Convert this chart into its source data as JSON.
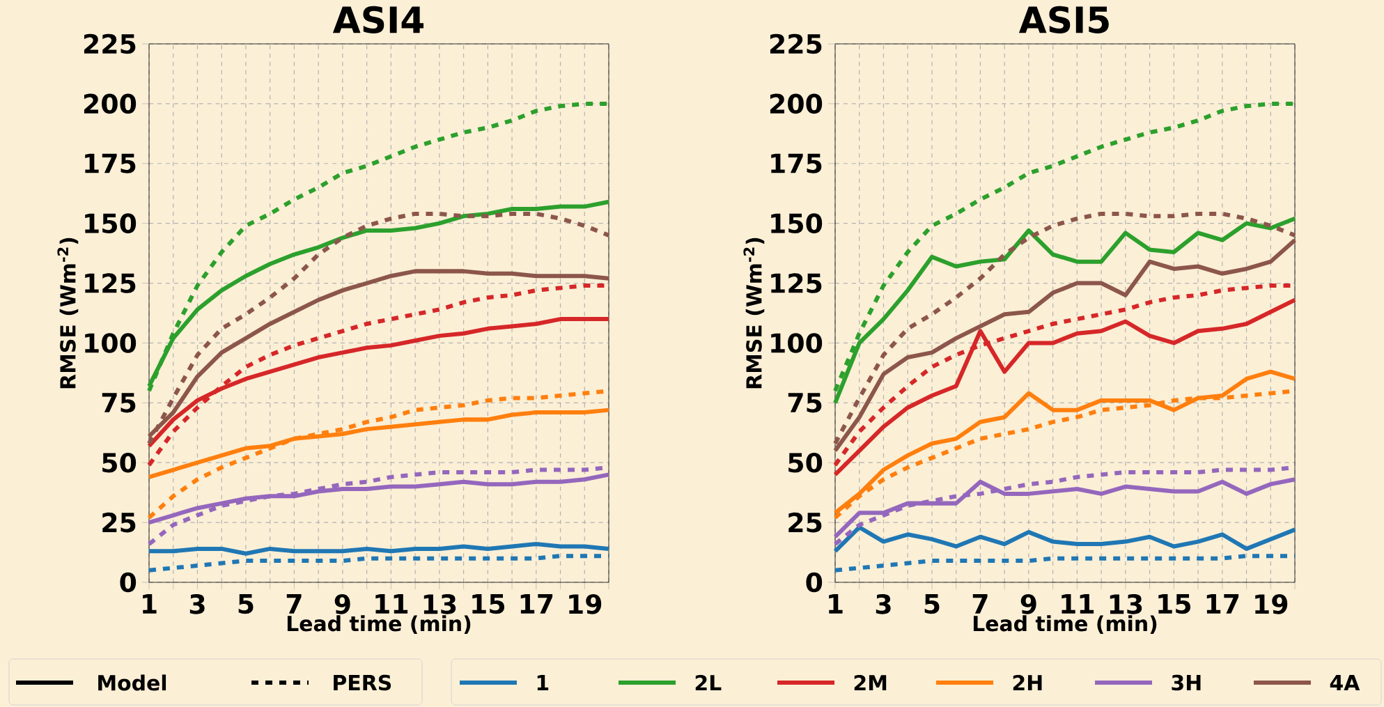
{
  "chart_data": [
    {
      "type": "line",
      "title": "ASI4",
      "xlabel": "Lead time (min)",
      "ylabel": "RMSE (Wm$^{-2}$)",
      "x": [
        1,
        2,
        3,
        4,
        5,
        6,
        7,
        8,
        9,
        10,
        11,
        12,
        13,
        14,
        15,
        16,
        17,
        18,
        19,
        20
      ],
      "xlim": [
        1,
        20
      ],
      "ylim": [
        0,
        225
      ],
      "xticks": [
        1,
        {
          "value": 2,
          "label": null
        },
        3,
        {
          "value": 4,
          "label": null
        },
        5,
        {
          "value": 6,
          "label": null
        },
        7,
        {
          "value": 8,
          "label": null
        },
        9,
        {
          "value": 10,
          "label": null
        },
        11,
        {
          "value": 12,
          "label": null
        },
        13,
        {
          "value": 14,
          "label": null
        },
        15,
        {
          "value": 16,
          "label": null
        },
        17,
        {
          "value": 18,
          "label": null
        },
        19,
        {
          "value": 20,
          "label": null
        }
      ],
      "yticks": [
        0,
        25,
        50,
        75,
        100,
        125,
        150,
        175,
        200,
        225
      ],
      "grid": true,
      "series": [
        {
          "color": "#1f77b4",
          "line_style": "solid",
          "values": [
            13,
            13,
            14,
            14,
            12,
            14,
            13,
            13,
            13,
            14,
            13,
            14,
            14,
            15,
            14,
            15,
            16,
            15,
            15,
            14
          ]
        },
        {
          "color": "#2ca02c",
          "line_style": "solid",
          "values": [
            82,
            102,
            114,
            122,
            128,
            133,
            137,
            140,
            144,
            147,
            147,
            148,
            150,
            153,
            154,
            156,
            156,
            157,
            157,
            159
          ]
        },
        {
          "color": "#d62728",
          "line_style": "solid",
          "values": [
            57,
            68,
            76,
            81,
            85,
            88,
            91,
            94,
            96,
            98,
            99,
            101,
            103,
            104,
            106,
            107,
            108,
            110,
            110,
            110
          ]
        },
        {
          "color": "#ff7f0e",
          "line_style": "solid",
          "values": [
            44,
            47,
            50,
            53,
            56,
            57,
            60,
            61,
            62,
            64,
            65,
            66,
            67,
            68,
            68,
            70,
            71,
            71,
            71,
            72
          ]
        },
        {
          "color": "#9467bd",
          "line_style": "solid",
          "values": [
            25,
            28,
            31,
            33,
            35,
            36,
            36,
            38,
            39,
            39,
            40,
            40,
            41,
            42,
            41,
            41,
            42,
            42,
            43,
            45
          ]
        },
        {
          "color": "#8c564b",
          "line_style": "solid",
          "values": [
            61,
            71,
            86,
            96,
            102,
            108,
            113,
            118,
            122,
            125,
            128,
            130,
            130,
            130,
            129,
            129,
            128,
            128,
            128,
            127
          ]
        },
        {
          "color": "#1f77b4",
          "line_style": "dotted",
          "values": [
            5,
            6,
            7,
            8,
            9,
            9,
            9,
            9,
            9,
            10,
            10,
            10,
            10,
            10,
            10,
            10,
            10,
            11,
            11,
            11
          ]
        },
        {
          "color": "#2ca02c",
          "line_style": "dotted",
          "values": [
            80,
            104,
            124,
            138,
            149,
            154,
            160,
            165,
            171,
            174,
            178,
            182,
            185,
            188,
            190,
            193,
            197,
            199,
            200,
            200
          ]
        },
        {
          "color": "#d62728",
          "line_style": "dotted",
          "values": [
            49,
            63,
            73,
            82,
            90,
            95,
            99,
            102,
            105,
            108,
            110,
            112,
            114,
            117,
            119,
            120,
            122,
            123,
            124,
            124
          ]
        },
        {
          "color": "#ff7f0e",
          "line_style": "dotted",
          "values": [
            27,
            36,
            43,
            48,
            52,
            56,
            60,
            62,
            64,
            67,
            69,
            72,
            73,
            74,
            76,
            77,
            77,
            78,
            79,
            80
          ]
        },
        {
          "color": "#9467bd",
          "line_style": "dotted",
          "values": [
            16,
            24,
            28,
            32,
            34,
            36,
            37,
            39,
            41,
            42,
            44,
            45,
            46,
            46,
            46,
            46,
            47,
            47,
            47,
            48
          ]
        },
        {
          "color": "#8c564b",
          "line_style": "dotted",
          "values": [
            58,
            77,
            95,
            106,
            112,
            119,
            127,
            137,
            144,
            149,
            152,
            154,
            154,
            153,
            153,
            154,
            154,
            152,
            149,
            145
          ]
        }
      ]
    },
    {
      "type": "line",
      "title": "ASI5",
      "xlabel": "Lead time (min)",
      "ylabel": "RMSE (Wm$^{-2}$)",
      "x": [
        1,
        2,
        3,
        4,
        5,
        6,
        7,
        8,
        9,
        10,
        11,
        12,
        13,
        14,
        15,
        16,
        17,
        18,
        19,
        20
      ],
      "xlim": [
        1,
        20
      ],
      "ylim": [
        0,
        225
      ],
      "xticks": [
        1,
        {
          "value": 2,
          "label": null
        },
        3,
        {
          "value": 4,
          "label": null
        },
        5,
        {
          "value": 6,
          "label": null
        },
        7,
        {
          "value": 8,
          "label": null
        },
        9,
        {
          "value": 10,
          "label": null
        },
        11,
        {
          "value": 12,
          "label": null
        },
        13,
        {
          "value": 14,
          "label": null
        },
        15,
        {
          "value": 16,
          "label": null
        },
        17,
        {
          "value": 18,
          "label": null
        },
        19,
        {
          "value": 20,
          "label": null
        }
      ],
      "yticks": [
        0,
        25,
        50,
        75,
        100,
        125,
        150,
        175,
        200,
        225
      ],
      "grid": true,
      "legend": "bottom",
      "series": [
        {
          "name": "1",
          "color": "#1f77b4",
          "line_style": "solid",
          "values": [
            13,
            23,
            17,
            20,
            18,
            15,
            19,
            16,
            21,
            17,
            16,
            16,
            17,
            19,
            15,
            17,
            20,
            14,
            18,
            22
          ]
        },
        {
          "name": "2L",
          "color": "#2ca02c",
          "line_style": "solid",
          "values": [
            75,
            100,
            110,
            122,
            136,
            132,
            134,
            135,
            147,
            137,
            134,
            134,
            146,
            139,
            138,
            146,
            143,
            150,
            148,
            152
          ]
        },
        {
          "name": "2M",
          "color": "#d62728",
          "line_style": "solid",
          "values": [
            45,
            55,
            65,
            73,
            78,
            82,
            105,
            88,
            100,
            100,
            104,
            105,
            109,
            103,
            100,
            105,
            106,
            108,
            113,
            118
          ]
        },
        {
          "name": "2H",
          "color": "#ff7f0e",
          "line_style": "solid",
          "values": [
            29,
            37,
            47,
            53,
            58,
            60,
            67,
            69,
            79,
            72,
            72,
            76,
            76,
            76,
            72,
            77,
            78,
            85,
            88,
            85
          ]
        },
        {
          "name": "3H",
          "color": "#9467bd",
          "line_style": "solid",
          "values": [
            19,
            29,
            29,
            33,
            33,
            33,
            42,
            37,
            37,
            38,
            39,
            37,
            40,
            39,
            38,
            38,
            42,
            37,
            41,
            43
          ]
        },
        {
          "name": "4A",
          "color": "#8c564b",
          "line_style": "solid",
          "values": [
            55,
            69,
            87,
            94,
            96,
            102,
            107,
            112,
            113,
            121,
            125,
            125,
            120,
            134,
            131,
            132,
            129,
            131,
            134,
            143
          ]
        },
        {
          "color": "#1f77b4",
          "line_style": "dotted",
          "values": [
            5,
            6,
            7,
            8,
            9,
            9,
            9,
            9,
            9,
            10,
            10,
            10,
            10,
            10,
            10,
            10,
            10,
            11,
            11,
            11
          ]
        },
        {
          "color": "#2ca02c",
          "line_style": "dotted",
          "values": [
            80,
            104,
            124,
            138,
            149,
            154,
            160,
            165,
            171,
            174,
            178,
            182,
            185,
            188,
            190,
            193,
            197,
            199,
            200,
            200
          ]
        },
        {
          "color": "#d62728",
          "line_style": "dotted",
          "values": [
            49,
            63,
            73,
            82,
            90,
            95,
            99,
            102,
            105,
            108,
            110,
            112,
            114,
            117,
            119,
            120,
            122,
            123,
            124,
            124
          ]
        },
        {
          "color": "#ff7f0e",
          "line_style": "dotted",
          "values": [
            27,
            36,
            43,
            48,
            52,
            56,
            60,
            62,
            64,
            67,
            69,
            72,
            73,
            74,
            76,
            77,
            77,
            78,
            79,
            80
          ]
        },
        {
          "color": "#9467bd",
          "line_style": "dotted",
          "values": [
            16,
            24,
            28,
            32,
            34,
            36,
            37,
            39,
            41,
            42,
            44,
            45,
            46,
            46,
            46,
            46,
            47,
            47,
            47,
            48
          ]
        },
        {
          "color": "#8c564b",
          "line_style": "dotted",
          "values": [
            58,
            77,
            95,
            106,
            112,
            119,
            127,
            137,
            144,
            149,
            152,
            154,
            154,
            153,
            153,
            154,
            154,
            152,
            149,
            145
          ]
        }
      ]
    },
    {
      "type": "other",
      "annotations": [
        "Model",
        "PERS"
      ]
    }
  ]
}
